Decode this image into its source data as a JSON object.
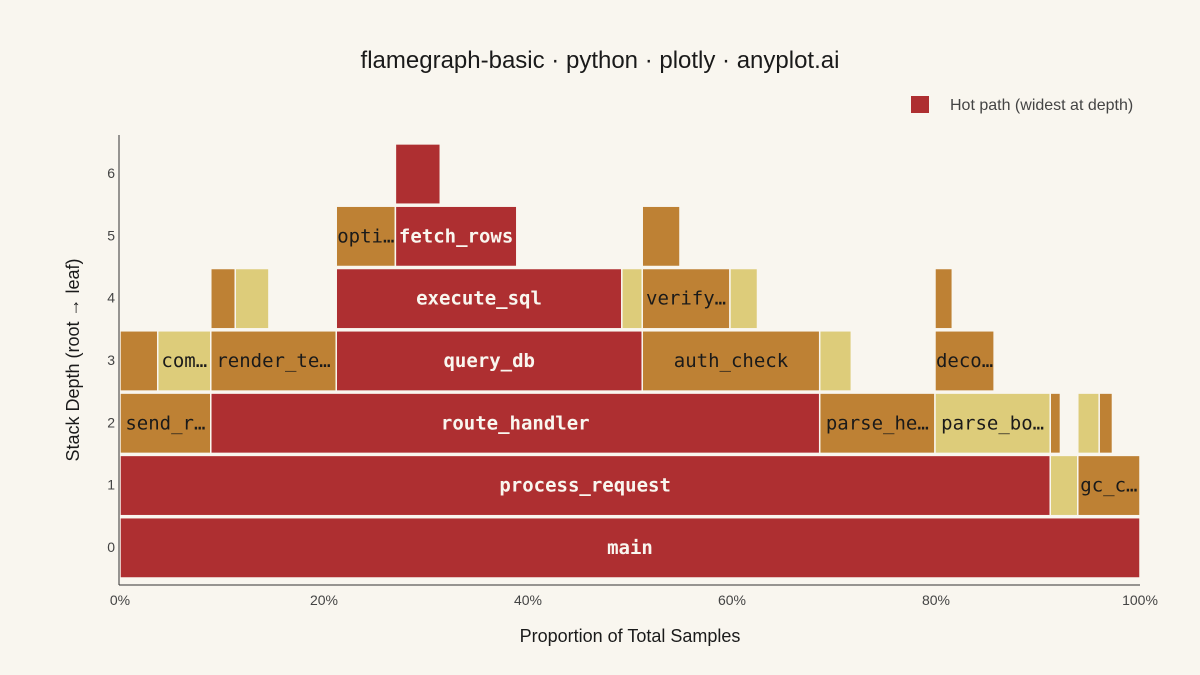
{
  "chart_data": {
    "type": "flamegraph",
    "title": "flamegraph-basic · python · plotly · anyplot.ai",
    "xlabel": "Proportion of Total Samples",
    "ylabel": "Stack Depth (root → leaf)",
    "xlim": [
      0,
      100
    ],
    "ylim": [
      0,
      6
    ],
    "x_ticks": [
      "0%",
      "20%",
      "40%",
      "60%",
      "80%",
      "100%"
    ],
    "y_ticks": [
      "0",
      "1",
      "2",
      "3",
      "4",
      "5",
      "6"
    ],
    "legend": {
      "placement": "top-right",
      "entries": [
        "Hot path (widest at depth)"
      ]
    },
    "colors": {
      "hot": "#AE2F31",
      "warm": "#BE8134",
      "light": "#DDCC7A"
    },
    "frames": [
      {
        "depth": 0,
        "start": 0,
        "end": 100,
        "label": "main",
        "color": "hot"
      },
      {
        "depth": 1,
        "start": 0,
        "end": 91.2,
        "label": "process_request",
        "color": "hot"
      },
      {
        "depth": 1,
        "start": 91.2,
        "end": 93.9,
        "label": "",
        "color": "light"
      },
      {
        "depth": 1,
        "start": 93.9,
        "end": 100,
        "label": "gc_c…",
        "color": "warm"
      },
      {
        "depth": 2,
        "start": 0,
        "end": 8.9,
        "label": "send_r…",
        "color": "warm"
      },
      {
        "depth": 2,
        "start": 8.9,
        "end": 68.6,
        "label": "route_handler",
        "color": "hot"
      },
      {
        "depth": 2,
        "start": 68.6,
        "end": 79.9,
        "label": "parse_he…",
        "color": "warm"
      },
      {
        "depth": 2,
        "start": 79.9,
        "end": 91.2,
        "label": "parse_bo…",
        "color": "light"
      },
      {
        "depth": 2,
        "start": 91.2,
        "end": 92.2,
        "label": "",
        "color": "warm"
      },
      {
        "depth": 2,
        "start": 93.9,
        "end": 96.0,
        "label": "",
        "color": "light"
      },
      {
        "depth": 2,
        "start": 96.0,
        "end": 97.3,
        "label": "",
        "color": "warm"
      },
      {
        "depth": 3,
        "start": 0,
        "end": 3.7,
        "label": "",
        "color": "warm"
      },
      {
        "depth": 3,
        "start": 3.7,
        "end": 8.9,
        "label": "com…",
        "color": "light"
      },
      {
        "depth": 3,
        "start": 8.9,
        "end": 21.2,
        "label": "render_te…",
        "color": "warm"
      },
      {
        "depth": 3,
        "start": 21.2,
        "end": 51.2,
        "label": "query_db",
        "color": "hot"
      },
      {
        "depth": 3,
        "start": 51.2,
        "end": 68.6,
        "label": "auth_check",
        "color": "warm"
      },
      {
        "depth": 3,
        "start": 68.6,
        "end": 71.7,
        "label": "",
        "color": "light"
      },
      {
        "depth": 3,
        "start": 79.9,
        "end": 85.7,
        "label": "deco…",
        "color": "warm"
      },
      {
        "depth": 4,
        "start": 8.9,
        "end": 11.3,
        "label": "",
        "color": "warm"
      },
      {
        "depth": 4,
        "start": 11.3,
        "end": 14.6,
        "label": "",
        "color": "light"
      },
      {
        "depth": 4,
        "start": 21.2,
        "end": 49.2,
        "label": "execute_sql",
        "color": "hot"
      },
      {
        "depth": 4,
        "start": 49.2,
        "end": 51.2,
        "label": "",
        "color": "light"
      },
      {
        "depth": 4,
        "start": 51.2,
        "end": 59.8,
        "label": "verify…",
        "color": "warm"
      },
      {
        "depth": 4,
        "start": 59.8,
        "end": 62.5,
        "label": "",
        "color": "light"
      },
      {
        "depth": 4,
        "start": 79.9,
        "end": 81.6,
        "label": "",
        "color": "warm"
      },
      {
        "depth": 5,
        "start": 21.2,
        "end": 27.0,
        "label": "opti…",
        "color": "warm"
      },
      {
        "depth": 5,
        "start": 27.0,
        "end": 38.9,
        "label": "fetch_rows",
        "color": "hot"
      },
      {
        "depth": 5,
        "start": 51.2,
        "end": 54.9,
        "label": "",
        "color": "warm"
      },
      {
        "depth": 6,
        "start": 27.0,
        "end": 31.4,
        "label": "",
        "color": "hot"
      }
    ]
  }
}
